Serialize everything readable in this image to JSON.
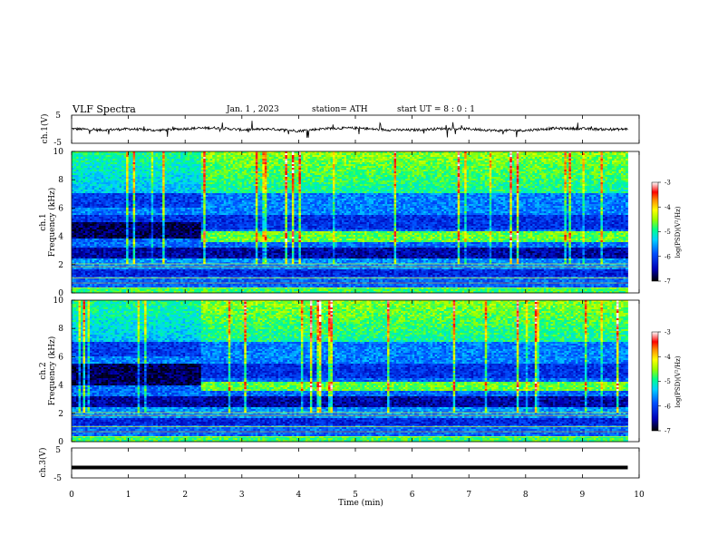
{
  "header": {
    "title": "VLF  Spectra",
    "date": "Jan.  1  , 2023",
    "station": "station= ATH",
    "start": "start  UT  =   8  : 0   : 1"
  },
  "chart_data": [
    {
      "type": "line",
      "panel": "ch1-waveform",
      "ylabel": "ch.1(V)",
      "ylim": [
        -5,
        5
      ],
      "yticks": [
        "5",
        "-5"
      ],
      "x": [
        0,
        0.5,
        1,
        1.5,
        2,
        2.5,
        3,
        3.5,
        4,
        4.5,
        5,
        5.5,
        6,
        6.5,
        7,
        7.5,
        8,
        8.5,
        9,
        9.5,
        9.8
      ],
      "values": [
        0.2,
        -0.3,
        0.1,
        -0.4,
        0.2,
        0.5,
        -0.2,
        0.1,
        -0.6,
        0.3,
        0.4,
        -0.2,
        -0.3,
        0.2,
        0.1,
        -0.5,
        -0.4,
        0.3,
        0.2,
        -0.1,
        0.1
      ]
    },
    {
      "type": "heatmap",
      "panel": "ch1-spectrogram",
      "ylabel": "ch.1\nFrequency  (kHz)",
      "ylim": [
        0,
        10
      ],
      "yticks": [
        "0",
        "2",
        "4",
        "6",
        "8",
        "10"
      ],
      "colorbar": {
        "label": "log(PSD)(V²/Hz)",
        "range": [
          -7,
          -3
        ],
        "ticks": [
          "-3",
          "-4",
          "-5",
          "-6",
          "-7"
        ]
      },
      "transition_min": 2.3,
      "before_transition": {
        "low_band_khz": [
          3.8,
          5.0
        ]
      },
      "after_transition": {
        "enhanced_band_khz": [
          3.6,
          4.3
        ]
      }
    },
    {
      "type": "heatmap",
      "panel": "ch2-spectrogram",
      "ylabel": "ch.2\nFrequency  (kHz)",
      "ylim": [
        0,
        10
      ],
      "yticks": [
        "0",
        "2",
        "4",
        "6",
        "8",
        "10"
      ],
      "colorbar": {
        "label": "log(PSD)(V²/Hz)",
        "range": [
          -7,
          -3
        ],
        "ticks": [
          "-3",
          "-4",
          "-5",
          "-6",
          "-7"
        ]
      },
      "transition_min": 2.3,
      "before_transition": {
        "low_band_khz": [
          4.0,
          5.5
        ]
      },
      "after_transition": {
        "enhanced_band_khz": [
          3.6,
          4.2
        ]
      }
    },
    {
      "type": "line",
      "panel": "ch3-waveform",
      "ylabel": "ch.3(V)",
      "ylim": [
        -5,
        5
      ],
      "yticks": [
        "5",
        "-5"
      ],
      "x": [
        0,
        9.8
      ],
      "values": [
        -1.5,
        -1.5
      ]
    }
  ],
  "xaxis": {
    "label": "Time  (min)",
    "range": [
      0,
      10
    ],
    "ticks": [
      "0",
      "1",
      "2",
      "3",
      "4",
      "5",
      "6",
      "7",
      "8",
      "9",
      "10"
    ]
  },
  "colors": {
    "colormap": [
      "#000033",
      "#0000b4",
      "#0050ff",
      "#00c8ff",
      "#00ff96",
      "#8cff00",
      "#ffff00",
      "#ff9600",
      "#ff0000",
      "#ffffff"
    ]
  }
}
